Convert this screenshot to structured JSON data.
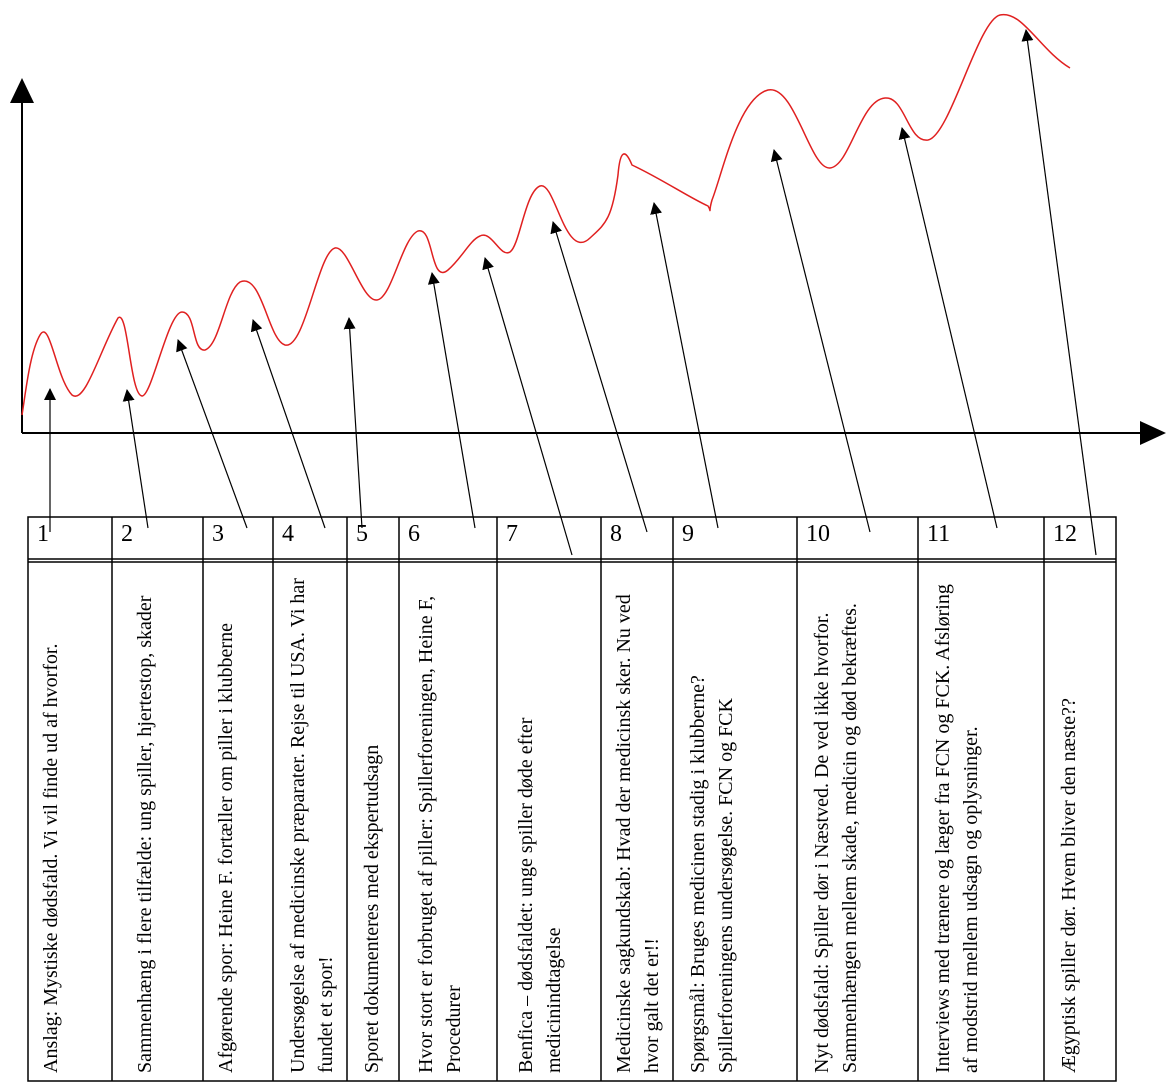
{
  "colors": {
    "curve": "#e02020",
    "ink": "#000000",
    "background": "#ffffff"
  },
  "steps": [
    {
      "number": "1",
      "text": "Anslag: Mystiske dødsfald. Vi vil finde ud af hvorfor."
    },
    {
      "number": "2",
      "text": "Sammenhæng i flere tilfælde: ung spiller, hjertestop, skader"
    },
    {
      "number": "3",
      "text": "Afgørende spor: Heine F. fortæller om piller i klubberne"
    },
    {
      "number": "4",
      "text": "Undersøgelse af medicinske præparater. Rejse til USA. Vi har fundet et spor!"
    },
    {
      "number": "5",
      "text": "Sporet dokumenteres med ekspertudsagn"
    },
    {
      "number": "6",
      "text": "Hvor stort er forbruget af piller: Spillerforeningen, Heine F, Procedurer"
    },
    {
      "number": "7",
      "text": "Benfica – dødsfaldet: unge spiller døde efter medicinindtagelse"
    },
    {
      "number": "8",
      "text": "Medicinske sagkundskab: Hvad der medicinsk sker.  Nu ved hvor galt det er!!"
    },
    {
      "number": "9",
      "text": "Spørgsmål: Bruges medicinen stadig i klubberne? Spillerforeningens undersøgelse. FCN og FCK"
    },
    {
      "number": "10",
      "text": "Nyt dødsfald: Spiller dør i Næstved. De ved ikke hvorfor. Sammenhængen mellem skade, medicin og død bekræftes."
    },
    {
      "number": "11",
      "text": "Interviews med trænere og læger fra FCN og FCK. Afsløring af  modstrid mellem udsagn og  oplysninger."
    },
    {
      "number": "12",
      "text": "Ægyptisk spiller dør. Hvem bliver den næste??"
    }
  ]
}
